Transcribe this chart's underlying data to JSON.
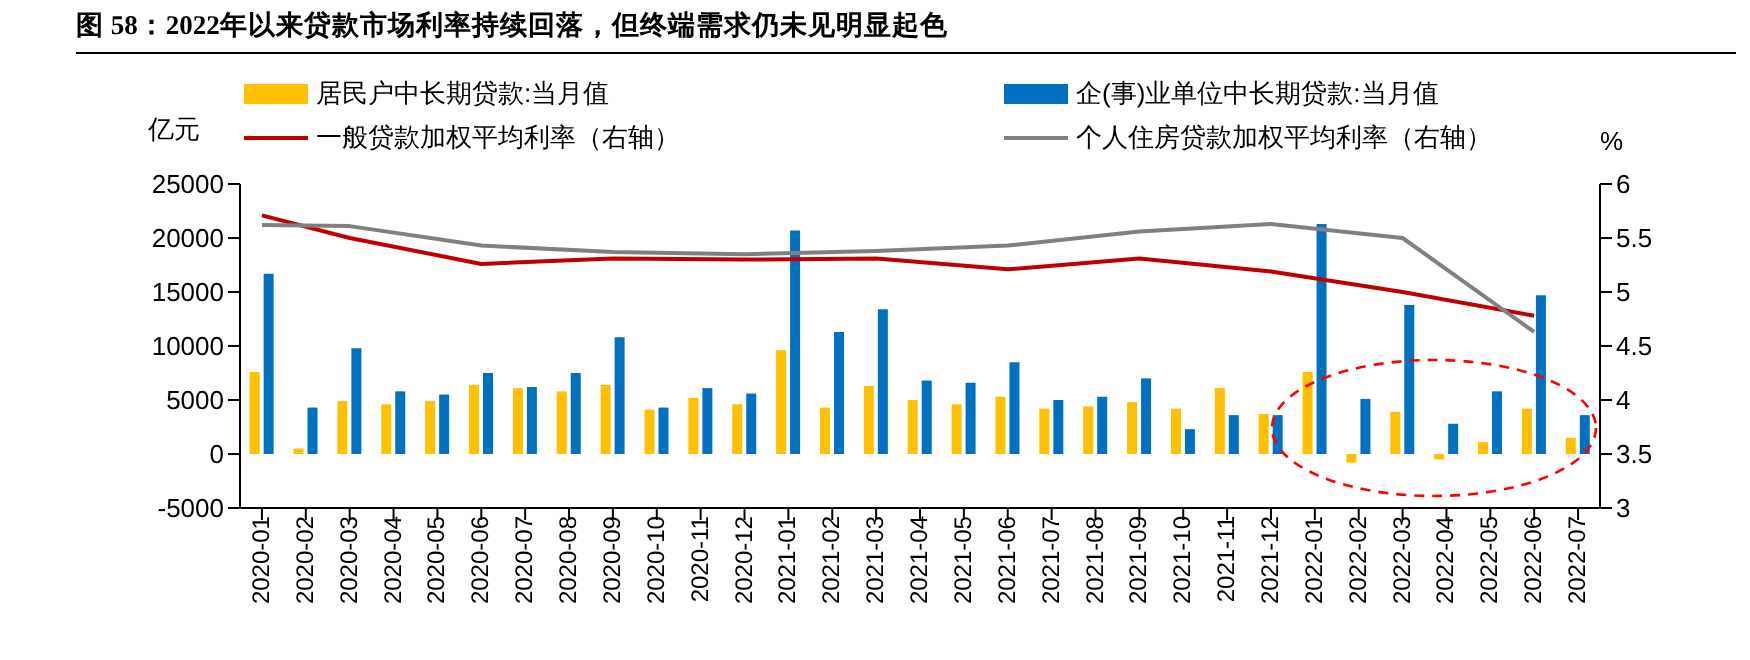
{
  "chart_data": {
    "type": "bar",
    "title": "图 58：2022年以来贷款市场利率持续回落，但终端需求仍未见明显起色",
    "ylabel": "亿元",
    "y2label": "%",
    "categories": [
      "2020-01",
      "2020-02",
      "2020-03",
      "2020-04",
      "2020-05",
      "2020-06",
      "2020-07",
      "2020-08",
      "2020-09",
      "2020-10",
      "2020-11",
      "2020-12",
      "2021-01",
      "2021-02",
      "2021-03",
      "2021-04",
      "2021-05",
      "2021-06",
      "2021-07",
      "2021-08",
      "2021-09",
      "2021-10",
      "2021-11",
      "2021-12",
      "2022-01",
      "2022-02",
      "2022-03",
      "2022-04",
      "2022-05",
      "2022-06",
      "2022-07"
    ],
    "series": [
      {
        "name": "居民户中长期贷款:当月值",
        "color": "#ffc000",
        "values": [
          7600,
          500,
          4900,
          4600,
          4900,
          6400,
          6100,
          5800,
          6400,
          4100,
          5200,
          4600,
          9600,
          4300,
          6300,
          5000,
          4600,
          5300,
          4200,
          4400,
          4800,
          4200,
          6100,
          3700,
          7600,
          -800,
          3900,
          -500,
          1100,
          4200,
          1500
        ]
      },
      {
        "name": "企(事)业单位中长期贷款:当月值",
        "color": "#0070c0",
        "values": [
          16700,
          4300,
          9800,
          5800,
          5500,
          7500,
          6200,
          7500,
          10800,
          4300,
          6100,
          5600,
          20700,
          11300,
          13400,
          6800,
          6600,
          8500,
          5000,
          5300,
          7000,
          2300,
          3600,
          3600,
          21300,
          5100,
          13800,
          2800,
          5800,
          14700,
          3600
        ]
      },
      {
        "name": "一般贷款加权平均利率（右轴）",
        "type": "line",
        "axis": "y2",
        "color": "#c00000",
        "values": [
          5.71,
          null,
          5.5,
          null,
          null,
          5.26,
          null,
          null,
          5.31,
          null,
          null,
          5.3,
          null,
          null,
          5.31,
          null,
          null,
          5.21,
          null,
          null,
          5.31,
          null,
          null,
          5.19,
          null,
          null,
          5.0,
          null,
          null,
          4.78,
          null
        ]
      },
      {
        "name": "个人住房贷款加权平均利率（右轴）",
        "type": "line",
        "axis": "y2",
        "color": "#808080",
        "values": [
          5.62,
          null,
          5.61,
          null,
          null,
          5.43,
          null,
          null,
          5.37,
          null,
          null,
          5.35,
          null,
          null,
          5.38,
          null,
          null,
          5.43,
          null,
          null,
          5.56,
          null,
          null,
          5.63,
          null,
          null,
          5.5,
          null,
          null,
          4.63,
          null
        ]
      }
    ],
    "ylim": [
      -5000,
      25000
    ],
    "yticks": [
      -5000,
      0,
      5000,
      10000,
      15000,
      20000,
      25000
    ],
    "y2lim": [
      3,
      6
    ],
    "y2ticks": [
      3,
      3.5,
      4,
      4.5,
      5,
      5.5,
      6
    ],
    "legend": "top",
    "marker": "none"
  }
}
